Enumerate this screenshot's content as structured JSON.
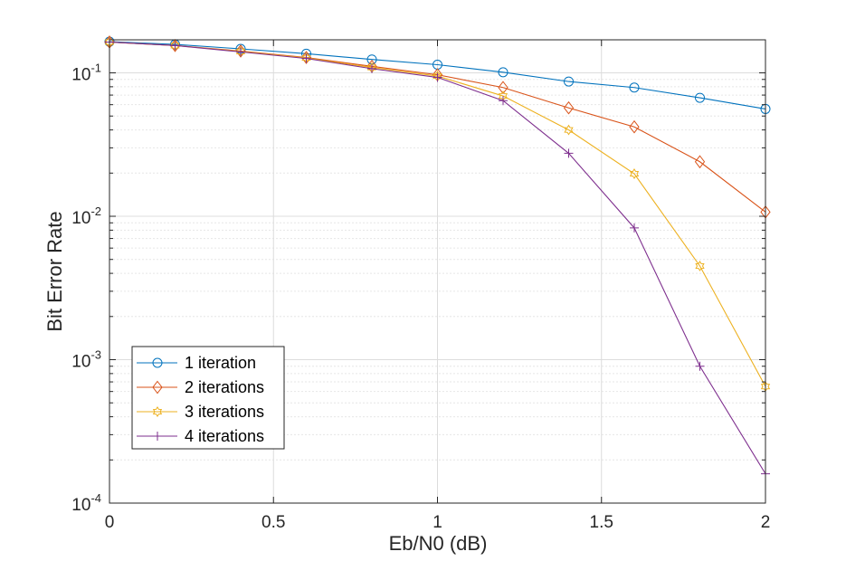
{
  "chart_data": {
    "type": "line",
    "xlabel": "Eb/N0 (dB)",
    "ylabel": "Bit Error Rate",
    "xlim": [
      0,
      2
    ],
    "ylim": [
      0.0001,
      0.17
    ],
    "yscale": "log",
    "grid": true,
    "legend_position": "bottom-left",
    "x_ticks": [
      "0",
      "0.5",
      "1",
      "1.5",
      "2"
    ],
    "y_ticks": [
      {
        "base": "10",
        "exp": "-4"
      },
      {
        "base": "10",
        "exp": "-3"
      },
      {
        "base": "10",
        "exp": "-2"
      },
      {
        "base": "10",
        "exp": "-1"
      }
    ],
    "x": [
      0,
      0.2,
      0.4,
      0.6,
      0.8,
      1.0,
      1.2,
      1.4,
      1.6,
      1.8,
      2.0
    ],
    "series": [
      {
        "name": "1 iteration",
        "color": "#0072BD",
        "marker": "circle",
        "values": [
          0.165,
          0.158,
          0.147,
          0.136,
          0.124,
          0.114,
          0.101,
          0.087,
          0.079,
          0.067,
          0.056
        ]
      },
      {
        "name": "2 iterations",
        "color": "#D95319",
        "marker": "diamond",
        "values": [
          0.164,
          0.155,
          0.142,
          0.128,
          0.111,
          0.097,
          0.079,
          0.057,
          0.042,
          0.024,
          0.0107
        ]
      },
      {
        "name": "3 iterations",
        "color": "#EDB120",
        "marker": "hexagram",
        "values": [
          0.164,
          0.155,
          0.141,
          0.127,
          0.109,
          0.095,
          0.069,
          0.04,
          0.0198,
          0.0045,
          0.00065
        ]
      },
      {
        "name": "4 iterations",
        "color": "#7E2F8E",
        "marker": "plus",
        "values": [
          0.164,
          0.155,
          0.14,
          0.126,
          0.107,
          0.093,
          0.064,
          0.0275,
          0.0083,
          0.0009,
          0.00016
        ]
      }
    ]
  }
}
